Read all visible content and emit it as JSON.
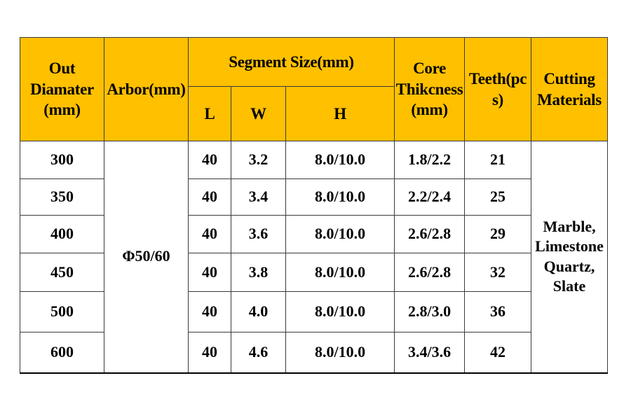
{
  "headers": {
    "out_diameter": "Out\nDiamater\n(mm)",
    "arbor": "Arbor(mm)",
    "segment_size": "Segment Size(mm)",
    "seg_l": "L",
    "seg_w": "W",
    "seg_h": "H",
    "core": "Core\nThikcness\n(mm)",
    "teeth": "Teeth(pc\ns)",
    "cutting": "Cutting\nMaterials"
  },
  "arbor_value": "Φ50/60",
  "cutting_value": "Marble,\nLimestone\nQuartz,\nSlate",
  "rows": [
    {
      "diameter": "300",
      "l": "40",
      "w": "3.2",
      "h": "8.0/10.0",
      "core": "1.8/2.2",
      "teeth": "21"
    },
    {
      "diameter": "350",
      "l": "40",
      "w": "3.4",
      "h": "8.0/10.0",
      "core": "2.2/2.4",
      "teeth": "25"
    },
    {
      "diameter": "400",
      "l": "40",
      "w": "3.6",
      "h": "8.0/10.0",
      "core": "2.6/2.8",
      "teeth": "29"
    },
    {
      "diameter": "450",
      "l": "40",
      "w": "3.8",
      "h": "8.0/10.0",
      "core": "2.6/2.8",
      "teeth": "32"
    },
    {
      "diameter": "500",
      "l": "40",
      "w": "4.0",
      "h": "8.0/10.0",
      "core": "2.8/3.0",
      "teeth": "36"
    },
    {
      "diameter": "600",
      "l": "40",
      "w": "4.6",
      "h": "8.0/10.0",
      "core": "3.4/3.6",
      "teeth": "42"
    }
  ],
  "colors": {
    "header_bg": "#ffc000",
    "border": "#3a3a3a",
    "cell_bg": "#ffffff"
  }
}
